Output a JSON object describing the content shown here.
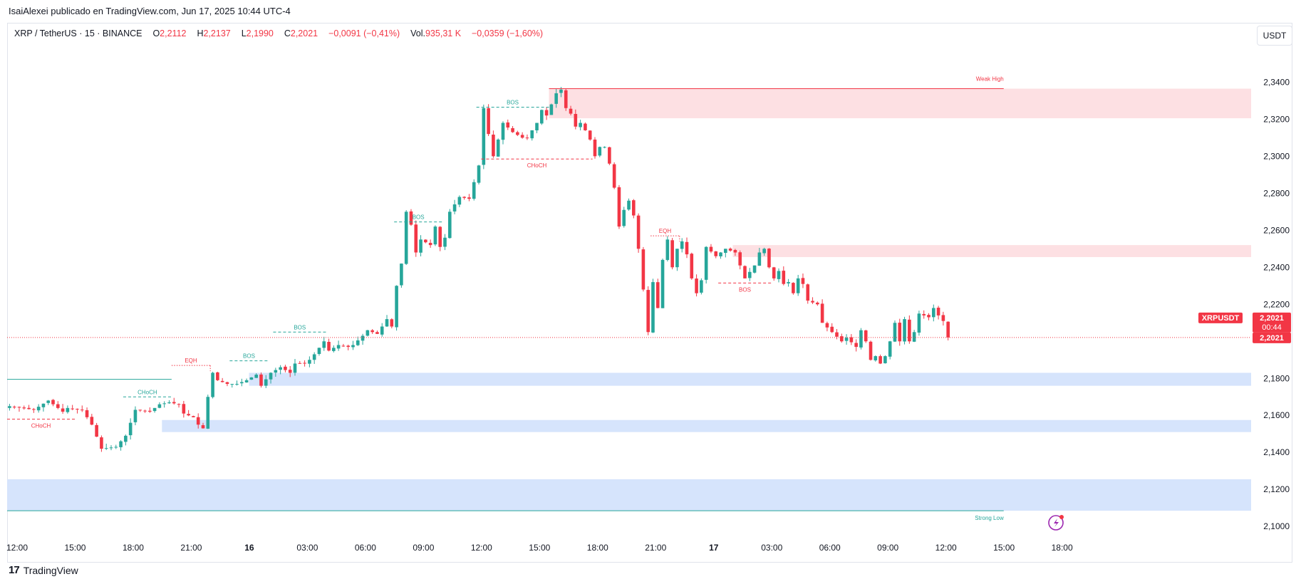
{
  "header": {
    "byline": "IsaiAlexei publicado en TradingView.com, Jun 17, 2025 10:44 UTC-4",
    "symbol": "XRP / TetherUS · 15 · BINANCE",
    "o_label": "O",
    "o": "2,2112",
    "h_label": "H",
    "h": "2,2137",
    "l_label": "L",
    "l": "2,1990",
    "c_label": "C",
    "c": "2,2021",
    "change": "−0,0091 (−0,41%)",
    "vol_label": "Vol.",
    "vol": "935,31 K",
    "vol_change": "−0,0359 (−1,60%)",
    "unit_button": "USDT"
  },
  "footer": {
    "logo_text": "TradingView",
    "logo_mark": "17"
  },
  "colors": {
    "up": "#26a69a",
    "down": "#f23645",
    "supply_zone": "#fde0e3",
    "demand_zone": "#d6e4fc",
    "price_tag": "#f23645"
  },
  "price_labels": {
    "symbol_tag": "XRPUSDT",
    "price": "2,2021",
    "countdown": "00:44",
    "price2": "2,2021"
  },
  "chart_data": {
    "type": "candlestick",
    "title": "",
    "ylim": [
      2.092,
      2.369
    ],
    "y_ticks": [
      "2,3400",
      "2,3200",
      "2,3000",
      "2,2800",
      "2,2600",
      "2,2400",
      "2,2200",
      "2,1800",
      "2,1600",
      "2,1400",
      "2,1200",
      "2,1000"
    ],
    "y_tick_values": [
      2.34,
      2.32,
      2.3,
      2.28,
      2.26,
      2.24,
      2.22,
      2.18,
      2.16,
      2.14,
      2.12,
      2.1
    ],
    "x_ticks": [
      "12:00",
      "15:00",
      "18:00",
      "21:00",
      "16",
      "03:00",
      "06:00",
      "09:00",
      "12:00",
      "15:00",
      "18:00",
      "21:00",
      "17",
      "03:00",
      "06:00",
      "09:00",
      "12:00",
      "15:00",
      "18:00"
    ],
    "x_tick_index": [
      0,
      12,
      24,
      36,
      48,
      60,
      72,
      84,
      96,
      108,
      120,
      132,
      144,
      156,
      168,
      180,
      192,
      204,
      216
    ],
    "last_price": 2.2021,
    "series": [
      {
        "keypoints": [
          [
            0,
            2.165
          ],
          [
            5,
            2.163
          ],
          [
            8,
            2.168
          ],
          [
            11,
            2.162
          ],
          [
            12,
            2.164
          ],
          [
            15,
            2.163
          ],
          [
            17,
            2.155
          ],
          [
            19,
            2.142
          ],
          [
            22,
            2.143
          ],
          [
            24,
            2.149
          ],
          [
            26,
            2.163
          ],
          [
            29,
            2.162
          ],
          [
            31,
            2.166
          ],
          [
            33,
            2.167
          ],
          [
            35,
            2.166
          ],
          [
            36,
            2.161
          ],
          [
            38,
            2.159
          ],
          [
            39,
            2.155
          ],
          [
            40,
            2.153
          ],
          [
            41,
            2.17
          ],
          [
            42,
            2.183
          ],
          [
            43,
            2.179
          ],
          [
            45,
            2.177
          ],
          [
            47,
            2.177
          ],
          [
            49,
            2.179
          ],
          [
            51,
            2.182
          ],
          [
            52,
            2.176
          ],
          [
            54,
            2.183
          ],
          [
            56,
            2.186
          ],
          [
            58,
            2.183
          ],
          [
            59,
            2.188
          ],
          [
            61,
            2.188
          ],
          [
            62,
            2.19
          ],
          [
            63,
            2.193
          ],
          [
            65,
            2.2
          ],
          [
            66,
            2.195
          ],
          [
            68,
            2.198
          ],
          [
            70,
            2.197
          ],
          [
            71,
            2.198
          ],
          [
            73,
            2.203
          ],
          [
            74,
            2.206
          ],
          [
            76,
            2.204
          ],
          [
            78,
            2.212
          ],
          [
            79,
            2.208
          ],
          [
            80,
            2.23
          ],
          [
            81,
            2.242
          ],
          [
            82,
            2.27
          ],
          [
            83,
            2.263
          ],
          [
            84,
            2.248
          ],
          [
            85,
            2.255
          ],
          [
            87,
            2.252
          ],
          [
            88,
            2.262
          ],
          [
            89,
            2.251
          ],
          [
            90,
            2.256
          ],
          [
            91,
            2.27
          ],
          [
            93,
            2.278
          ],
          [
            95,
            2.277
          ],
          [
            96,
            2.286
          ],
          [
            97,
            2.295
          ],
          [
            98,
            2.326
          ],
          [
            99,
            2.312
          ],
          [
            100,
            2.3
          ],
          [
            102,
            2.318
          ],
          [
            104,
            2.313
          ],
          [
            106,
            2.31
          ],
          [
            107,
            2.31
          ],
          [
            109,
            2.318
          ],
          [
            110,
            2.325
          ],
          [
            111,
            2.322
          ],
          [
            113,
            2.334
          ],
          [
            114,
            2.336
          ],
          [
            115,
            2.326
          ],
          [
            116,
            2.323
          ],
          [
            117,
            2.316
          ],
          [
            118,
            2.318
          ],
          [
            119,
            2.314
          ],
          [
            120,
            2.309
          ],
          [
            121,
            2.3
          ],
          [
            122,
            2.305
          ],
          [
            123,
            2.305
          ],
          [
            124,
            2.296
          ],
          [
            125,
            2.283
          ],
          [
            126,
            2.262
          ],
          [
            127,
            2.271
          ],
          [
            128,
            2.276
          ],
          [
            129,
            2.268
          ],
          [
            130,
            2.25
          ],
          [
            131,
            2.228
          ],
          [
            132,
            2.205
          ],
          [
            133,
            2.232
          ],
          [
            134,
            2.218
          ],
          [
            135,
            2.244
          ],
          [
            136,
            2.255
          ],
          [
            137,
            2.24
          ],
          [
            138,
            2.25
          ],
          [
            139,
            2.254
          ],
          [
            140,
            2.247
          ],
          [
            141,
            2.234
          ],
          [
            142,
            2.226
          ],
          [
            143,
            2.233
          ],
          [
            144,
            2.251
          ],
          [
            146,
            2.246
          ],
          [
            148,
            2.25
          ],
          [
            150,
            2.248
          ],
          [
            151,
            2.241
          ],
          [
            152,
            2.234
          ],
          [
            154,
            2.241
          ],
          [
            155,
            2.248
          ],
          [
            156,
            2.25
          ],
          [
            157,
            2.24
          ],
          [
            158,
            2.234
          ],
          [
            159,
            2.238
          ],
          [
            160,
            2.231
          ],
          [
            161,
            2.232
          ],
          [
            162,
            2.226
          ],
          [
            163,
            2.234
          ],
          [
            164,
            2.231
          ],
          [
            165,
            2.222
          ],
          [
            167,
            2.22
          ],
          [
            168,
            2.21
          ],
          [
            170,
            2.205
          ],
          [
            172,
            2.2
          ],
          [
            173,
            2.202
          ],
          [
            175,
            2.197
          ],
          [
            176,
            2.206
          ],
          [
            177,
            2.2
          ],
          [
            178,
            2.19
          ],
          [
            179,
            2.192
          ],
          [
            180,
            2.188
          ],
          [
            181,
            2.192
          ],
          [
            182,
            2.2
          ],
          [
            183,
            2.21
          ],
          [
            184,
            2.2
          ],
          [
            185,
            2.212
          ],
          [
            186,
            2.2
          ],
          [
            187,
            2.205
          ],
          [
            188,
            2.215
          ],
          [
            190,
            2.213
          ],
          [
            191,
            2.218
          ],
          [
            192,
            2.214
          ],
          [
            193,
            2.211
          ],
          [
            194,
            2.2021
          ]
        ]
      }
    ],
    "zones": [
      {
        "kind": "supply",
        "y_top": 2.3365,
        "y_bottom": 2.3205,
        "x_from": 112,
        "x_to": "right"
      },
      {
        "kind": "supply",
        "y_top": 2.252,
        "y_bottom": 2.2455,
        "x_from": 150,
        "x_to": "right"
      },
      {
        "kind": "demand",
        "y_top": 2.183,
        "y_bottom": 2.176,
        "x_from": 50,
        "x_to": "right"
      },
      {
        "kind": "demand",
        "y_top": 2.1575,
        "y_bottom": 2.151,
        "x_from": 32,
        "x_to": "right"
      },
      {
        "kind": "demand",
        "y_top": 2.1255,
        "y_bottom": 2.1085,
        "x_from": 0,
        "x_to": "right"
      }
    ],
    "structure_lines": [
      {
        "label": "CHoCH",
        "color": "down",
        "y": 2.158,
        "x1": 0,
        "x2": 14,
        "style": "dashed",
        "label_pos": "below"
      },
      {
        "label": "CHoCH",
        "color": "up",
        "y": 2.17,
        "x1": 24,
        "x2": 34,
        "style": "dashed",
        "label_pos": "above"
      },
      {
        "label": "EQH",
        "color": "down",
        "y": 2.187,
        "x1": 34,
        "x2": 42,
        "style": "dotted",
        "label_pos": "above"
      },
      {
        "label": "BOS",
        "color": "up",
        "y": 2.1895,
        "x1": 46,
        "x2": 54,
        "style": "dashed",
        "label_pos": "above"
      },
      {
        "label": "BOS",
        "color": "up",
        "y": 2.205,
        "x1": 55,
        "x2": 66,
        "style": "dashed",
        "label_pos": "above"
      },
      {
        "label": "BOS",
        "color": "up",
        "y": 2.2645,
        "x1": 80,
        "x2": 90,
        "style": "dashed",
        "label_pos": "above"
      },
      {
        "label": "BOS",
        "color": "up",
        "y": 2.3265,
        "x1": 97,
        "x2": 112,
        "style": "dashed",
        "label_pos": "above"
      },
      {
        "label": "CHoCH",
        "color": "down",
        "y": 2.2985,
        "x1": 98,
        "x2": 121,
        "style": "dashed",
        "label_pos": "below"
      },
      {
        "label": "EQH",
        "color": "down",
        "y": 2.257,
        "x1": 133,
        "x2": 139,
        "style": "dotted",
        "label_pos": "above"
      },
      {
        "label": "BOS",
        "color": "down",
        "y": 2.2315,
        "x1": 147,
        "x2": 158,
        "style": "dashed",
        "label_pos": "below"
      }
    ],
    "levels": [
      {
        "label": "Weak High",
        "color": "down",
        "y": 2.3365,
        "x1": 112,
        "x2": 206
      },
      {
        "label": "Strong Low",
        "color": "up",
        "y": 2.1085,
        "x1": 0,
        "x2": 206
      },
      {
        "label": "",
        "color": "up",
        "y": 2.1795,
        "x1": 0,
        "x2": 34
      }
    ]
  }
}
